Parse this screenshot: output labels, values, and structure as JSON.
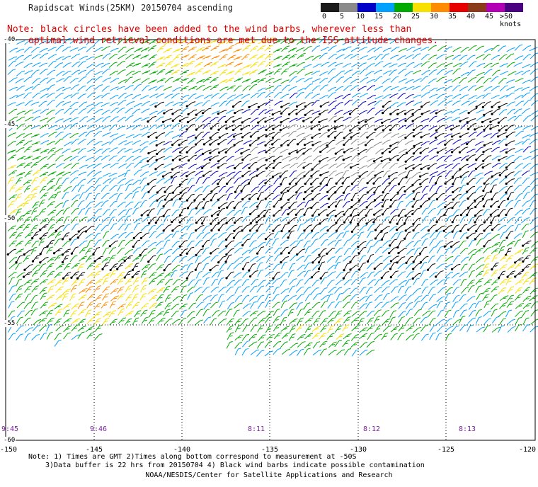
{
  "title": "Rapidscat Winds(25KM) 20150704 ascending",
  "note": {
    "line1": "Note: black circles have been added to the wind barbs, wherever less than",
    "line2": "optimal wind retrieval conditions are met due to the ISS attitude changes."
  },
  "legend": {
    "unit_label": ">50 knots",
    "tick_labels": [
      "0",
      "5",
      "10",
      "15",
      "20",
      "25",
      "30",
      "35",
      "40",
      "45",
      ">50 knots"
    ],
    "colors": [
      "#1a1a1a",
      "#8a8a8a",
      "#0000c8",
      "#00a0ff",
      "#00aa00",
      "#f8e000",
      "#ff8c00",
      "#e80000",
      "#8b3a1a",
      "#b400b4",
      "#4b0082"
    ]
  },
  "map": {
    "x_ticks": [
      "-150",
      "-145",
      "-140",
      "-135",
      "-130",
      "-125",
      "-120"
    ],
    "y_ticks": [
      "-40",
      "-45",
      "-50",
      "-55",
      "-60"
    ],
    "times": [
      "9:45",
      "9:46",
      "8:11",
      "8:12",
      "8:13"
    ]
  },
  "footer": {
    "line1": "Note: 1) Times are GMT 2)Times along bottom correspond to measurement at -50S",
    "line2": "3)Data buffer is 22 hrs from 20150704 4) Black wind barbs indicate possible contamination",
    "line3": "NOAA/NESDIS/Center for Satellite Applications and Research"
  }
}
